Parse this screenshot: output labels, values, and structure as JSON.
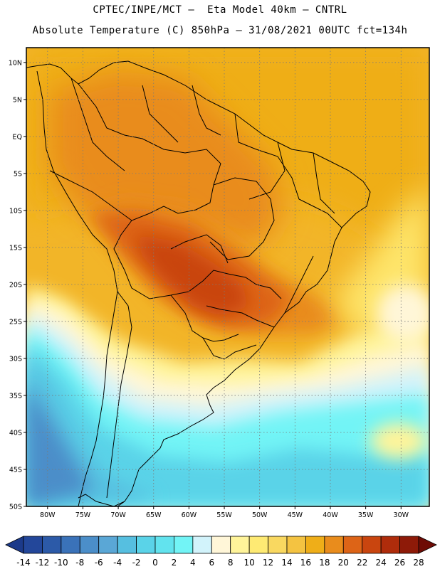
{
  "title": {
    "line1": "CPTEC/INPE/MCT –  Eta Model 40km – CNTRL",
    "line2": "Absolute Temperature (C) 850hPa – 31/08/2021 00UTC fct=134h"
  },
  "map": {
    "region": "South America",
    "lat_labels": [
      "10N",
      "5N",
      "EQ",
      "5S",
      "10S",
      "15S",
      "20S",
      "25S",
      "30S",
      "35S",
      "40S",
      "45S",
      "50S"
    ],
    "lat_values": [
      10,
      5,
      0,
      -5,
      -10,
      -15,
      -20,
      -25,
      -30,
      -35,
      -40,
      -45,
      -50
    ],
    "lon_labels": [
      "80W",
      "75W",
      "70W",
      "65W",
      "60W",
      "55W",
      "50W",
      "45W",
      "40W",
      "35W",
      "30W"
    ],
    "lon_values": [
      -80,
      -75,
      -70,
      -65,
      -60,
      -55,
      -50,
      -45,
      -40,
      -35,
      -30
    ],
    "lat_range": [
      -50,
      12
    ],
    "lon_range": [
      -83,
      -26
    ]
  },
  "colorbar": {
    "labels": [
      "-14",
      "-12",
      "-10",
      "-8",
      "-6",
      "-4",
      "-2",
      "0",
      "2",
      "4",
      "6",
      "8",
      "10",
      "12",
      "14",
      "16",
      "18",
      "20",
      "22",
      "24",
      "26",
      "28"
    ],
    "colors": [
      "#23479a",
      "#2c5aa8",
      "#3a72b9",
      "#4b8ec9",
      "#5aa7d6",
      "#56bfe0",
      "#5ad3e8",
      "#62e3ee",
      "#72f4f6",
      "#d2f3fb",
      "#fff6d8",
      "#fff49a",
      "#feea73",
      "#f9d860",
      "#f4c341",
      "#efae18",
      "#e98c1c",
      "#dd6417",
      "#c9450f",
      "#af2c0b",
      "#8e1a08"
    ],
    "low_color": "#1c3a8a",
    "high_color": "#6e0b05"
  }
}
